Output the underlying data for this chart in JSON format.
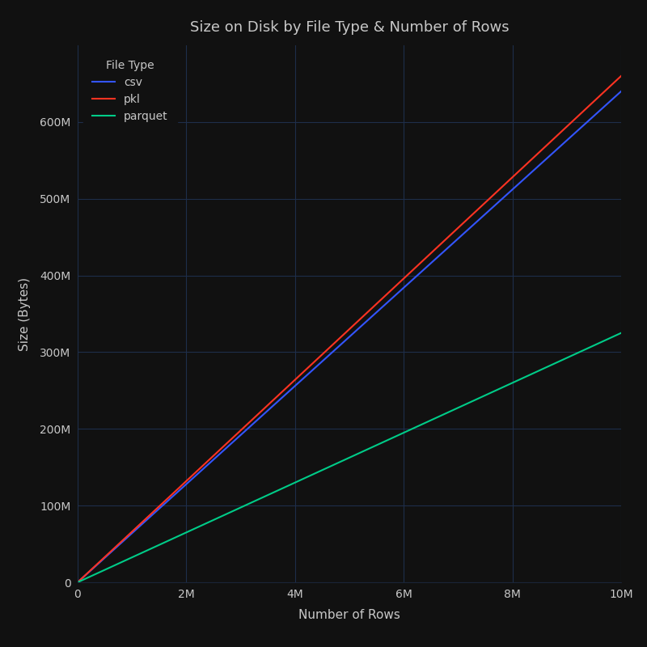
{
  "title": "Size on Disk by File Type & Number of Rows",
  "xlabel": "Number of Rows",
  "ylabel": "Size (Bytes)",
  "background_color": "#111111",
  "text_color": "#c8c8c8",
  "grid_color": "#1e2e4a",
  "legend_title": "File Type",
  "series": [
    {
      "label": "csv",
      "color": "#3355ff",
      "x": [
        0,
        10000000
      ],
      "y": [
        0,
        640000000
      ]
    },
    {
      "label": "pkl",
      "color": "#ff3322",
      "x": [
        0,
        10000000
      ],
      "y": [
        0,
        660000000
      ]
    },
    {
      "label": "parquet",
      "color": "#00cc88",
      "x": [
        0,
        10000000
      ],
      "y": [
        0,
        325000000
      ]
    }
  ],
  "xlim": [
    0,
    10000000
  ],
  "ylim": [
    0,
    700000000
  ],
  "xticks": [
    0,
    2000000,
    4000000,
    6000000,
    8000000,
    10000000
  ],
  "xtick_labels": [
    "0",
    "2M",
    "4M",
    "6M",
    "8M",
    "10M"
  ],
  "yticks": [
    0,
    100000000,
    200000000,
    300000000,
    400000000,
    500000000,
    600000000
  ],
  "ytick_labels": [
    "0",
    "100M",
    "200M",
    "300M",
    "400M",
    "500M",
    "600M"
  ],
  "line_width": 1.5,
  "title_fontsize": 13,
  "label_fontsize": 11,
  "tick_fontsize": 10,
  "legend_fontsize": 10
}
